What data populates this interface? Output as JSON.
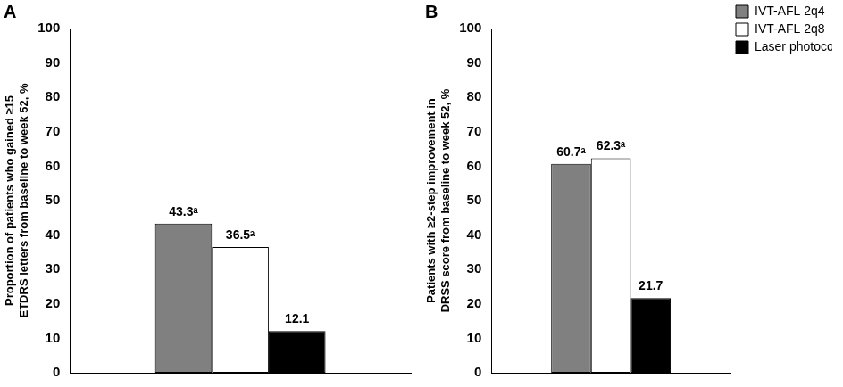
{
  "chart_data": [
    {
      "type": "bar",
      "title": "A",
      "y_label": [
        "Proportion of patients who gained ≥15",
        "ETDRS letters from baseline to week 52, %"
      ],
      "categories": [
        null
      ],
      "series": [
        {
          "name": "IVT-AFL 2q4",
          "color": "#808080",
          "values": [
            43.3
          ],
          "value_labels": [
            "43.3ᵃ"
          ]
        },
        {
          "name": "IVT-AFL 2q8",
          "color": "#ffffff",
          "values": [
            36.5
          ],
          "value_labels": [
            "36.5ᵃ"
          ]
        },
        {
          "name": "Laser photocoagulation",
          "color": "#000000",
          "values": [
            12.1
          ]
        }
      ],
      "ylim": [
        0,
        100
      ],
      "yticks": [
        0,
        10,
        20,
        30,
        40,
        50,
        60,
        70,
        80,
        90,
        100
      ],
      "grid": false,
      "data_labels": true,
      "tick_labels": "y"
    },
    {
      "type": "bar",
      "title": "B",
      "y_label": [
        "Patients with ≥2-step improvement in",
        "DRSS score from baseline to week 52, %"
      ],
      "categories": [
        null
      ],
      "series": [
        {
          "name": "IVT-AFL 2q4",
          "color": "#808080",
          "values": [
            60.7
          ],
          "value_labels": [
            "60.7ᵃ"
          ]
        },
        {
          "name": "IVT-AFL 2q8",
          "color": "#ffffff",
          "values": [
            62.3
          ],
          "value_labels": [
            "62.3ᵃ"
          ]
        },
        {
          "name": "Laser photocoagulation",
          "color": "#000000",
          "values": [
            21.7
          ]
        }
      ],
      "ylim": [
        0,
        100
      ],
      "yticks": [
        0,
        10,
        20,
        30,
        40,
        50,
        60,
        70,
        80,
        90,
        100
      ],
      "grid": false,
      "data_labels": true,
      "tick_labels": "y",
      "legend": "top-right"
    }
  ]
}
